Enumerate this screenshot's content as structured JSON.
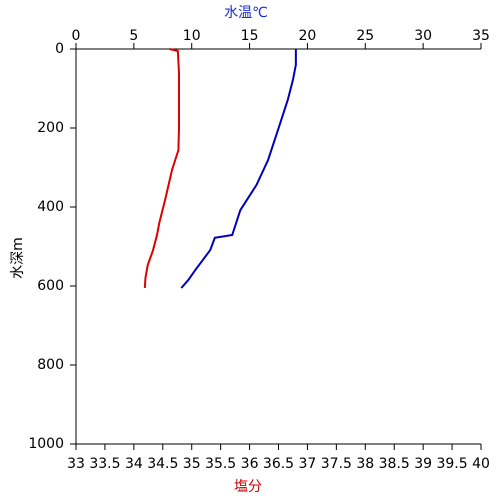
{
  "chart_data": {
    "type": "line",
    "x_label": "塩分",
    "x2_label": "水温℃",
    "y_label": "水深m",
    "x_label_color": "#cc0000",
    "x2_label_color": "#1a2fcc",
    "xlim": [
      33,
      40
    ],
    "xticks": [
      33,
      33.5,
      34,
      34.5,
      35,
      35.5,
      36,
      36.5,
      37,
      37.5,
      38,
      38.5,
      39,
      39.5,
      40
    ],
    "x2lim": [
      0,
      35
    ],
    "x2ticks": [
      0,
      5,
      10,
      15,
      20,
      25,
      30,
      35
    ],
    "ylim": [
      0,
      1000
    ],
    "yticks": [
      0,
      200,
      400,
      600,
      800,
      1000
    ],
    "y_inverted": true,
    "series": [
      {
        "color": "#dd0000",
        "axis": "x",
        "x": [
          34.62,
          34.76,
          34.78,
          34.78,
          34.77,
          34.66,
          34.54,
          34.44,
          34.4,
          34.33,
          34.24,
          34.2,
          34.19
        ],
        "y": [
          0,
          5,
          60,
          200,
          256,
          306,
          382,
          440,
          471,
          510,
          547,
          580,
          605
        ]
      },
      {
        "color": "#0000bb",
        "axis": "x2",
        "x": [
          19.0,
          19.0,
          18.75,
          18.3,
          17.6,
          16.6,
          15.6,
          14.2,
          13.5,
          12.0,
          11.6,
          10.3,
          9.7,
          9.1
        ],
        "y": [
          0,
          40,
          78,
          129,
          192,
          281,
          344,
          408,
          471,
          478,
          509,
          560,
          585,
          605
        ]
      }
    ]
  }
}
